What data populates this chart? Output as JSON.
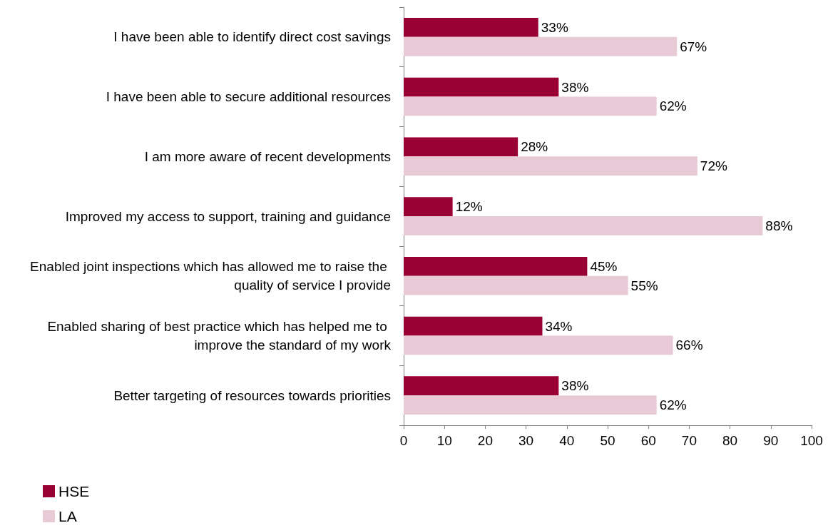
{
  "chart_data": {
    "type": "bar",
    "orientation": "horizontal",
    "categories": [
      "I have been able to identify direct cost savings",
      "I have been able to secure additional resources",
      "I am more aware of recent developments",
      "Improved my access to support, training and guidance",
      "Enabled joint inspections which has allowed me to raise the quality of service I provide",
      "Enabled sharing of best practice which has helped me to improve the standard of my work",
      "Better targeting of resources towards priorities"
    ],
    "series": [
      {
        "name": "HSE",
        "color": "#990033",
        "values": [
          33,
          38,
          28,
          12,
          45,
          34,
          38
        ],
        "value_labels": [
          "33%",
          "38%",
          "28%",
          "12%",
          "45%",
          "34%",
          "38%"
        ]
      },
      {
        "name": "LA",
        "color": "#e8c9d6",
        "values": [
          67,
          62,
          72,
          88,
          55,
          66,
          62
        ],
        "value_labels": [
          "67%",
          "62%",
          "72%",
          "88%",
          "55%",
          "66%",
          "62%"
        ]
      }
    ],
    "xlim": [
      0,
      100
    ],
    "xticks": [
      0,
      10,
      20,
      30,
      40,
      50,
      60,
      70,
      80,
      90,
      100
    ],
    "grid": false,
    "legend": "bottom left"
  }
}
